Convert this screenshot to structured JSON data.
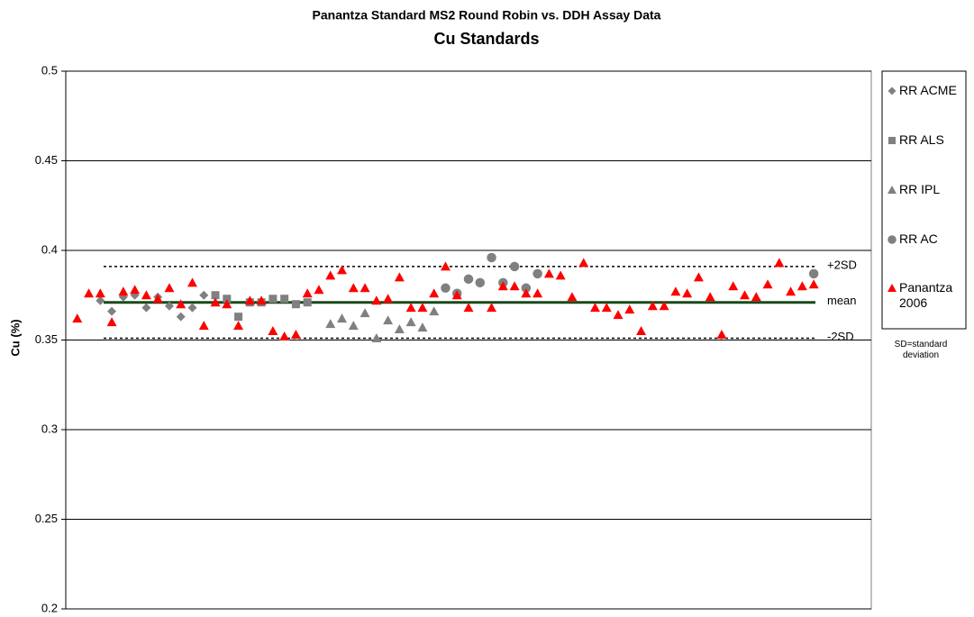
{
  "chart_data": {
    "type": "scatter",
    "title": "Panantza Standard MS2 Round Robin vs. DDH Assay Data",
    "subtitle": "Cu Standards",
    "y_label": "Cu (%)",
    "note": "SD=standard deviation",
    "xlim": [
      0,
      70
    ],
    "ylim": [
      0.2,
      0.5
    ],
    "yticks": [
      0.2,
      0.25,
      0.3,
      0.35,
      0.4,
      0.45,
      0.5
    ],
    "grid": true,
    "legend": "right",
    "reference_lines": [
      {
        "label": "+2SD",
        "value": 0.391,
        "color": "#000000",
        "style": "dotted"
      },
      {
        "label": "mean",
        "value": 0.371,
        "color": "#1a4a1a",
        "style": "solid"
      },
      {
        "label": "-2SD",
        "value": 0.351,
        "color": "#000000",
        "style": "dotted"
      }
    ],
    "series": [
      {
        "name": "RR ACME",
        "color": "#808080",
        "marker": "diamond",
        "x": [
          3,
          4,
          5,
          6,
          7,
          8,
          9,
          10,
          11,
          12
        ],
        "values": [
          0.372,
          0.366,
          0.374,
          0.375,
          0.368,
          0.374,
          0.369,
          0.363,
          0.368,
          0.375
        ]
      },
      {
        "name": "RR ALS",
        "color": "#808080",
        "marker": "square",
        "x": [
          13,
          14,
          15,
          16,
          17,
          18,
          19,
          20,
          21
        ],
        "values": [
          0.375,
          0.373,
          0.363,
          0.371,
          0.371,
          0.373,
          0.373,
          0.37,
          0.371
        ]
      },
      {
        "name": "RR IPL",
        "color": "#808080",
        "marker": "triangle",
        "x": [
          23,
          24,
          25,
          26,
          27,
          28,
          29,
          30,
          31,
          32
        ],
        "values": [
          0.359,
          0.362,
          0.358,
          0.365,
          0.351,
          0.361,
          0.356,
          0.36,
          0.357,
          0.366
        ]
      },
      {
        "name": "RR AC",
        "color": "#808080",
        "marker": "circle",
        "x": [
          33,
          34,
          35,
          36,
          37,
          38,
          39,
          40,
          41,
          65
        ],
        "values": [
          0.379,
          0.376,
          0.384,
          0.382,
          0.396,
          0.382,
          0.391,
          0.379,
          0.387,
          0.387
        ]
      },
      {
        "name": "Panantza 2006",
        "color": "#ff0000",
        "marker": "triangle",
        "x": [
          1,
          2,
          3,
          4,
          5,
          6,
          7,
          8,
          9,
          10,
          11,
          12,
          13,
          14,
          15,
          16,
          17,
          18,
          19,
          20,
          21,
          22,
          23,
          24,
          25,
          26,
          27,
          28,
          29,
          30,
          31,
          32,
          33,
          34,
          35,
          37,
          38,
          39,
          40,
          41,
          42,
          43,
          44,
          45,
          46,
          47,
          48,
          49,
          50,
          51,
          52,
          53,
          54,
          55,
          56,
          57,
          58,
          59,
          60,
          61,
          62,
          63,
          64,
          65
        ],
        "values": [
          0.362,
          0.376,
          0.376,
          0.36,
          0.377,
          0.378,
          0.375,
          0.373,
          0.379,
          0.37,
          0.382,
          0.358,
          0.371,
          0.37,
          0.358,
          0.372,
          0.372,
          0.355,
          0.352,
          0.353,
          0.376,
          0.378,
          0.386,
          0.389,
          0.379,
          0.379,
          0.372,
          0.373,
          0.385,
          0.368,
          0.368,
          0.376,
          0.391,
          0.375,
          0.368,
          0.368,
          0.38,
          0.38,
          0.376,
          0.376,
          0.387,
          0.386,
          0.374,
          0.393,
          0.368,
          0.368,
          0.364,
          0.367,
          0.355,
          0.369,
          0.369,
          0.377,
          0.376,
          0.385,
          0.374,
          0.353,
          0.38,
          0.375,
          0.374,
          0.381,
          0.393,
          0.377,
          0.38,
          0.381
        ]
      }
    ]
  }
}
